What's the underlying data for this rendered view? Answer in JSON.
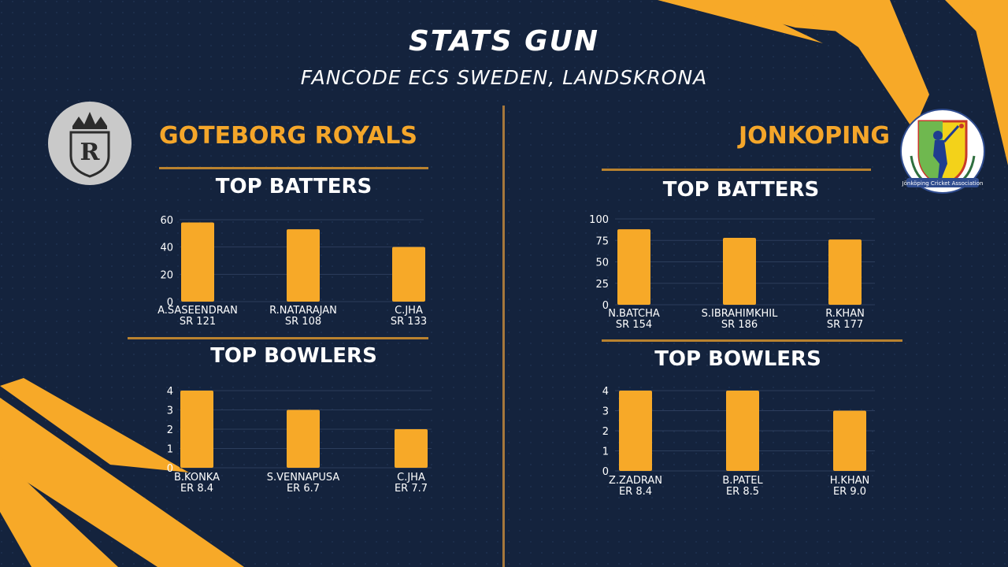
{
  "header": {
    "title": "STATS GUN",
    "subtitle": "FANCODE ECS SWEDEN, LANDSKRONA"
  },
  "colors": {
    "background": "#14233d",
    "accent": "#f4a62a",
    "bar": "#f7a928",
    "text": "#ffffff"
  },
  "left": {
    "team": "GOTEBORG ROYALS",
    "logo_icon": "royals-crest-icon",
    "logo_letter": "R",
    "batters_heading": "TOP BATTERS",
    "bowlers_heading": "TOP BOWLERS"
  },
  "right": {
    "team": "JONKOPING",
    "logo_icon": "jonkoping-cricket-association-logo",
    "logo_text": "Jönköping Cricket Association",
    "batters_heading": "TOP BATTERS",
    "bowlers_heading": "TOP BOWLERS"
  },
  "chart_data": [
    {
      "id": "left_batters",
      "type": "bar",
      "ylim": [
        0,
        60
      ],
      "yticks": [
        0,
        20,
        40,
        60
      ],
      "categories": [
        [
          "A.SASEENDRAN",
          "SR 121"
        ],
        [
          "R.NATARAJAN",
          "SR 108"
        ],
        [
          "C.JHA",
          "SR 133"
        ]
      ],
      "values": [
        58,
        53,
        40
      ]
    },
    {
      "id": "left_bowlers",
      "type": "bar",
      "ylim": [
        0,
        4
      ],
      "yticks": [
        0,
        1,
        2,
        3,
        4
      ],
      "categories": [
        [
          "B.KONKA",
          "ER 8.4"
        ],
        [
          "S.VENNAPUSA",
          "ER 6.7"
        ],
        [
          "C.JHA",
          "ER 7.7"
        ]
      ],
      "values": [
        4,
        3,
        2
      ]
    },
    {
      "id": "right_batters",
      "type": "bar",
      "ylim": [
        0,
        100
      ],
      "yticks": [
        0,
        25,
        50,
        75,
        100
      ],
      "categories": [
        [
          "N.BATCHA",
          "SR 154"
        ],
        [
          "S.IBRAHIMKHIL",
          "SR 186"
        ],
        [
          "R.KHAN",
          "SR 177"
        ]
      ],
      "values": [
        88,
        78,
        76
      ]
    },
    {
      "id": "right_bowlers",
      "type": "bar",
      "ylim": [
        0,
        4
      ],
      "yticks": [
        0,
        1,
        2,
        3,
        4
      ],
      "categories": [
        [
          "Z.ZADRAN",
          "ER 8.4"
        ],
        [
          "B.PATEL",
          "ER 8.5"
        ],
        [
          "H.KHAN",
          "ER 9.0"
        ]
      ],
      "values": [
        4,
        4,
        3
      ]
    }
  ]
}
